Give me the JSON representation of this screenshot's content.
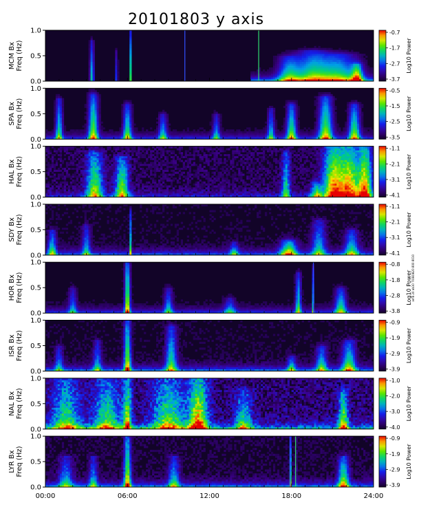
{
  "title": "20101803 y axis",
  "side_note": "amb 20 ab10 TIOBOB20 800 8010",
  "chart_data": [
    {
      "type": "heatmap",
      "ylabel": [
        "MCM Bx",
        "Freq (Hz)"
      ],
      "colorbar_label": "Log10 Power",
      "colorbar_ticks": [
        "-0.7",
        "-1.7",
        "-2.7",
        "-3.7"
      ],
      "clim": [
        -3.7,
        -0.7
      ],
      "yticks": [
        "1.0",
        "0.5",
        "0.0"
      ],
      "ylim": [
        0,
        1
      ],
      "xlim": [
        0,
        24
      ],
      "noise": 0.05,
      "events": [
        {
          "t": 3.4,
          "w": 0.15,
          "amp": 0.55,
          "fmax": 0.8
        },
        {
          "t": 5.2,
          "w": 0.1,
          "amp": 0.35,
          "fmax": 0.6
        },
        {
          "t": 6.2,
          "w": 0.04,
          "amp": 0.95,
          "fmax": 1.0
        },
        {
          "t": 10.2,
          "w": 0.04,
          "amp": 0.9,
          "fmax": 1.0,
          "hue": "blue"
        },
        {
          "t": 15.6,
          "w": 0.04,
          "amp": 0.95,
          "fmax": 1.0,
          "hue": "green"
        },
        {
          "t": 17.8,
          "w": 0.8,
          "amp": 0.55,
          "fmax": 0.5
        },
        {
          "t": 19.5,
          "w": 1.2,
          "amp": 0.6,
          "fmax": 0.6
        },
        {
          "t": 21.5,
          "w": 1.4,
          "amp": 0.6,
          "fmax": 0.55
        },
        {
          "t": 22.8,
          "w": 0.4,
          "amp": 0.7,
          "fmax": 0.35
        }
      ],
      "base_band": {
        "from": 15.0,
        "to": 24.0,
        "amp": 0.5
      }
    },
    {
      "type": "heatmap",
      "ylabel": [
        "SPA Bx",
        "Freq (Hz)"
      ],
      "colorbar_label": "Log10 Power",
      "colorbar_ticks": [
        "-0.5",
        "-1.5",
        "-2.5",
        "-3.5"
      ],
      "clim": [
        -3.5,
        -0.5
      ],
      "yticks": [
        "1.0",
        "0.5",
        "0.0"
      ],
      "ylim": [
        0,
        1
      ],
      "xlim": [
        0,
        24
      ],
      "noise": 0.08,
      "events": [
        {
          "t": 1.0,
          "w": 0.25,
          "amp": 0.6,
          "fmax": 0.8
        },
        {
          "t": 3.5,
          "w": 0.35,
          "amp": 0.75,
          "fmax": 0.9
        },
        {
          "t": 6.0,
          "w": 0.3,
          "amp": 0.65,
          "fmax": 0.7
        },
        {
          "t": 8.6,
          "w": 0.3,
          "amp": 0.5,
          "fmax": 0.5
        },
        {
          "t": 12.5,
          "w": 0.25,
          "amp": 0.45,
          "fmax": 0.5
        },
        {
          "t": 16.5,
          "w": 0.25,
          "amp": 0.5,
          "fmax": 0.6
        },
        {
          "t": 18.0,
          "w": 0.35,
          "amp": 0.7,
          "fmax": 0.7
        },
        {
          "t": 20.5,
          "w": 0.5,
          "amp": 0.75,
          "fmax": 0.85
        },
        {
          "t": 22.6,
          "w": 0.4,
          "amp": 0.7,
          "fmax": 0.7
        }
      ],
      "base_band": {
        "from": 0,
        "to": 24.0,
        "amp": 0.35
      }
    },
    {
      "type": "heatmap",
      "ylabel": [
        "HAL Bx",
        "Freq (Hz)"
      ],
      "colorbar_label": "Log10 Power",
      "colorbar_ticks": [
        "-1.1",
        "-2.1",
        "-3.1",
        "-4.1"
      ],
      "clim": [
        -4.1,
        -1.1
      ],
      "yticks": [
        "1.0",
        "0.5",
        "0.0"
      ],
      "ylim": [
        0,
        1
      ],
      "xlim": [
        0,
        24
      ],
      "noise": 0.3,
      "events": [
        {
          "t": 3.6,
          "w": 0.6,
          "amp": 0.7,
          "fmax": 0.9
        },
        {
          "t": 5.6,
          "w": 0.5,
          "amp": 0.7,
          "fmax": 0.8
        },
        {
          "t": 17.6,
          "w": 0.3,
          "amp": 0.55,
          "fmax": 0.9
        },
        {
          "t": 19.8,
          "w": 0.4,
          "amp": 0.6,
          "fmax": 0.3
        },
        {
          "t": 21.0,
          "w": 0.7,
          "amp": 0.85,
          "fmax": 1.0
        },
        {
          "t": 22.2,
          "w": 0.8,
          "amp": 0.9,
          "fmax": 1.0
        },
        {
          "t": 23.4,
          "w": 0.5,
          "amp": 0.85,
          "fmax": 1.0
        }
      ],
      "base_band": {
        "from": 0,
        "to": 24.0,
        "amp": 0.25
      }
    },
    {
      "type": "heatmap",
      "ylabel": [
        "SDY Bx",
        "Freq (Hz)"
      ],
      "colorbar_label": "Log10 Power",
      "colorbar_ticks": [
        "-1.1",
        "-2.1",
        "-3.1",
        "-4.1"
      ],
      "clim": [
        -4.1,
        -1.1
      ],
      "yticks": [
        "1.0",
        "0.5",
        "0.0"
      ],
      "ylim": [
        0,
        1
      ],
      "xlim": [
        0,
        24
      ],
      "noise": 0.15,
      "events": [
        {
          "t": 0.5,
          "w": 0.3,
          "amp": 0.55,
          "fmax": 0.5
        },
        {
          "t": 3.0,
          "w": 0.3,
          "amp": 0.45,
          "fmax": 0.6
        },
        {
          "t": 6.2,
          "w": 0.04,
          "amp": 0.8,
          "fmax": 0.9
        },
        {
          "t": 13.8,
          "w": 0.3,
          "amp": 0.45,
          "fmax": 0.25
        },
        {
          "t": 17.8,
          "w": 0.6,
          "amp": 0.75,
          "fmax": 0.3
        },
        {
          "t": 20.0,
          "w": 0.5,
          "amp": 0.5,
          "fmax": 0.7
        },
        {
          "t": 22.4,
          "w": 0.5,
          "amp": 0.55,
          "fmax": 0.5
        }
      ],
      "base_band": {
        "from": 0,
        "to": 24.0,
        "amp": 0.4
      }
    },
    {
      "type": "heatmap",
      "ylabel": [
        "HOR Bx",
        "Freq (Hz)"
      ],
      "colorbar_label": "Log10 Power",
      "colorbar_ticks": [
        "-0.8",
        "-1.8",
        "-2.8",
        "-3.8"
      ],
      "clim": [
        -3.8,
        -0.8
      ],
      "yticks": [
        "1.0",
        "0.5",
        "0.0"
      ],
      "ylim": [
        0,
        1
      ],
      "xlim": [
        0,
        24
      ],
      "noise": 0.1,
      "events": [
        {
          "t": 2.0,
          "w": 0.3,
          "amp": 0.4,
          "fmax": 0.5
        },
        {
          "t": 6.0,
          "w": 0.2,
          "amp": 0.85,
          "fmax": 1.0
        },
        {
          "t": 9.0,
          "w": 0.3,
          "amp": 0.45,
          "fmax": 0.5
        },
        {
          "t": 13.5,
          "w": 0.4,
          "amp": 0.4,
          "fmax": 0.3
        },
        {
          "t": 18.5,
          "w": 0.2,
          "amp": 0.6,
          "fmax": 0.8
        },
        {
          "t": 19.6,
          "w": 0.04,
          "amp": 0.7,
          "fmax": 0.9,
          "hue": "blue"
        },
        {
          "t": 21.6,
          "w": 0.4,
          "amp": 0.6,
          "fmax": 0.5
        }
      ],
      "base_band": {
        "from": 0,
        "to": 24.0,
        "amp": 0.35
      }
    },
    {
      "type": "heatmap",
      "ylabel": [
        "ISR Bx",
        "Freq (Hz)"
      ],
      "colorbar_label": "Log10 Power",
      "colorbar_ticks": [
        "-0.9",
        "-1.9",
        "-2.9",
        "-3.9"
      ],
      "clim": [
        -3.9,
        -0.9
      ],
      "yticks": [
        "1.0",
        "0.5",
        "0.0"
      ],
      "ylim": [
        0,
        1
      ],
      "xlim": [
        0,
        24
      ],
      "noise": 0.15,
      "events": [
        {
          "t": 1.0,
          "w": 0.3,
          "amp": 0.4,
          "fmax": 0.5
        },
        {
          "t": 3.8,
          "w": 0.3,
          "amp": 0.45,
          "fmax": 0.6
        },
        {
          "t": 6.0,
          "w": 0.25,
          "amp": 0.8,
          "fmax": 1.0
        },
        {
          "t": 9.2,
          "w": 0.4,
          "amp": 0.6,
          "fmax": 0.9
        },
        {
          "t": 18.0,
          "w": 0.3,
          "amp": 0.5,
          "fmax": 0.3
        },
        {
          "t": 20.2,
          "w": 0.4,
          "amp": 0.55,
          "fmax": 0.5
        },
        {
          "t": 22.2,
          "w": 0.5,
          "amp": 0.65,
          "fmax": 0.6
        }
      ],
      "base_band": {
        "from": 0,
        "to": 24.0,
        "amp": 0.45
      }
    },
    {
      "type": "heatmap",
      "ylabel": [
        "NAL Bx",
        "Freq (Hz)"
      ],
      "colorbar_label": "Log10 Power",
      "colorbar_ticks": [
        "-1.0",
        "-2.0",
        "-3.0",
        "-4.0"
      ],
      "clim": [
        -4.0,
        -1.0
      ],
      "yticks": [
        "1.0",
        "0.5",
        "0.0"
      ],
      "ylim": [
        0,
        1
      ],
      "xlim": [
        0,
        24
      ],
      "noise": 0.45,
      "events": [
        {
          "t": 1.5,
          "w": 1.0,
          "amp": 0.55,
          "fmax": 1.0
        },
        {
          "t": 4.5,
          "w": 1.0,
          "amp": 0.55,
          "fmax": 1.0
        },
        {
          "t": 6.0,
          "w": 0.3,
          "amp": 0.7,
          "fmax": 1.0
        },
        {
          "t": 9.0,
          "w": 1.2,
          "amp": 0.6,
          "fmax": 1.0
        },
        {
          "t": 11.2,
          "w": 0.7,
          "amp": 0.85,
          "fmax": 1.0
        },
        {
          "t": 14.5,
          "w": 0.6,
          "amp": 0.5,
          "fmax": 0.8
        },
        {
          "t": 21.8,
          "w": 0.35,
          "amp": 0.7,
          "fmax": 0.8
        }
      ],
      "base_band": {
        "from": 0,
        "to": 24.0,
        "amp": 0.5
      }
    },
    {
      "type": "heatmap",
      "ylabel": [
        "LYR Bx",
        "Freq (Hz)"
      ],
      "colorbar_label": "Log10 Power",
      "colorbar_ticks": [
        "-0.9",
        "-1.9",
        "-2.9",
        "-3.9"
      ],
      "clim": [
        -3.9,
        -0.9
      ],
      "yticks": [
        "1.0",
        "0.5",
        "0.0"
      ],
      "ylim": [
        0,
        1
      ],
      "xlim": [
        0,
        24
      ],
      "noise": 0.2,
      "events": [
        {
          "t": 1.5,
          "w": 0.5,
          "amp": 0.45,
          "fmax": 0.6
        },
        {
          "t": 3.5,
          "w": 0.3,
          "amp": 0.45,
          "fmax": 0.6
        },
        {
          "t": 6.0,
          "w": 0.25,
          "amp": 0.8,
          "fmax": 1.0
        },
        {
          "t": 9.4,
          "w": 0.4,
          "amp": 0.5,
          "fmax": 0.6
        },
        {
          "t": 17.9,
          "w": 0.04,
          "amp": 0.8,
          "fmax": 1.0,
          "hue": "blue"
        },
        {
          "t": 18.3,
          "w": 0.05,
          "amp": 0.7,
          "fmax": 0.9,
          "hue": "green"
        },
        {
          "t": 21.8,
          "w": 0.4,
          "amp": 0.7,
          "fmax": 0.6
        }
      ],
      "base_band": {
        "from": 0,
        "to": 24.0,
        "amp": 0.45
      }
    }
  ],
  "xaxis": {
    "xlim": [
      0,
      24
    ],
    "tick_labels": [
      "00:00",
      "06:00",
      "12:00",
      "18:00",
      "24:00"
    ]
  }
}
